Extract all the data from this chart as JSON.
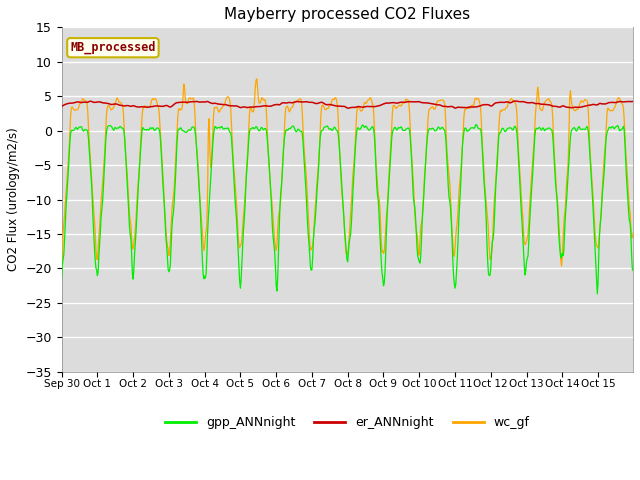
{
  "title": "Mayberry processed CO2 Fluxes",
  "ylabel": "CO2 Flux (urology/m2/s)",
  "ylim": [
    -35,
    15
  ],
  "yticks": [
    -35,
    -30,
    -25,
    -20,
    -15,
    -10,
    -5,
    0,
    5,
    10,
    15
  ],
  "fig_bg_color": "#ffffff",
  "plot_bg_color": "#dcdcdc",
  "legend_label": "MB_processed",
  "legend_text_color": "#8b0000",
  "legend_border_color": "#c8b400",
  "legend_bg_color": "#fffff0",
  "line_colors": {
    "gpp": "#00ee00",
    "er": "#cc0000",
    "wc": "#ffa500"
  },
  "legend_lines": {
    "gpp_ANNnight": "#00ee00",
    "er_ANNnight": "#cc0000",
    "wc_gf": "#ffa500"
  }
}
